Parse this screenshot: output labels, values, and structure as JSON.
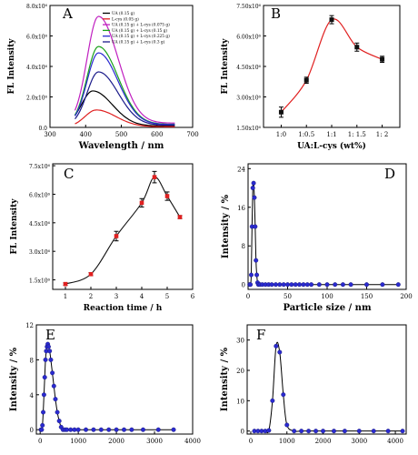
{
  "chart_data": [
    {
      "panel": "A",
      "type": "line",
      "xlabel": "Wavelength / nm",
      "ylabel": "FL Intensity",
      "xlim": [
        300,
        700
      ],
      "ylim": [
        0,
        8000000
      ],
      "xticks": [
        "300",
        "400",
        "500",
        "600",
        "700"
      ],
      "yticks": [
        "0.0",
        "2.0x10⁶",
        "4.0x10⁶",
        "6.0x10⁶",
        "8.0x10⁶"
      ],
      "legend_position": "top-right",
      "series": [
        {
          "name": "UA (0.15 g)",
          "color": "#000000",
          "peak_x": 420,
          "peak": 2300000
        },
        {
          "name": "L-cys (0.05 g)",
          "color": "#e02020",
          "peak_x": 430,
          "peak": 1100000
        },
        {
          "name": "UA (0.15 g) + L-cys (0.075 g)",
          "color": "#c020c0",
          "peak_x": 436,
          "peak": 7000000
        },
        {
          "name": "UA (0.15 g) + L-cys (0.15 g)",
          "color": "#18a018",
          "peak_x": 436,
          "peak": 5100000
        },
        {
          "name": "UA (0.15 g) + L-cys (0.225 g)",
          "color": "#2a2ad0",
          "peak_x": 436,
          "peak": 4700000
        },
        {
          "name": "UA (0.15 g) + L-cys (0.3 g)",
          "color": "#1b1b8a",
          "peak_x": 436,
          "peak": 3500000
        }
      ]
    },
    {
      "panel": "B",
      "type": "line",
      "xlabel": "UA:L-cys (wt%)",
      "ylabel": "FL Intensity",
      "categories": [
        "1:0",
        "1:0.5",
        "1:1",
        "1: 1.5",
        "1: 2"
      ],
      "values": [
        2250000,
        3820000,
        6800000,
        5450000,
        4850000
      ],
      "errors": [
        250000,
        150000,
        200000,
        200000,
        150000
      ],
      "ylim": [
        1500000,
        7500000
      ],
      "yticks": [
        "1.50x10⁶",
        "3.00x10⁶",
        "4.50x10⁶",
        "6.00x10⁶",
        "7.50x10⁶"
      ],
      "line_color": "#e02020",
      "marker_color": "#111111"
    },
    {
      "panel": "C",
      "type": "line",
      "xlabel": "Reaction time / h",
      "ylabel": "FL Intensity",
      "x": [
        1,
        2,
        3,
        4,
        4.5,
        5,
        5.5
      ],
      "values": [
        1280000,
        1800000,
        3800000,
        5550000,
        6900000,
        5900000,
        4800000
      ],
      "errors": [
        60000,
        80000,
        250000,
        220000,
        300000,
        220000,
        80000
      ],
      "xlim": [
        0.5,
        6
      ],
      "ylim": [
        1000000,
        7600000
      ],
      "xticks": [
        "1",
        "2",
        "3",
        "4",
        "5",
        "6"
      ],
      "yticks": [
        "1.5x10⁶",
        "3.0x10⁶",
        "4.5x10⁶",
        "6.0x10⁶",
        "7.5x10⁶"
      ],
      "line_color": "#111111",
      "marker_color": "#e02020"
    },
    {
      "panel": "D",
      "type": "line",
      "xlabel": "Particle size / nm",
      "ylabel": "Intensity / %",
      "x": [
        2,
        3,
        4,
        5,
        6,
        7,
        8,
        9,
        10,
        11,
        12,
        13,
        15,
        18,
        22,
        26,
        30,
        35,
        40,
        45,
        50,
        55,
        60,
        65,
        70,
        75,
        80,
        90,
        100,
        110,
        120,
        130,
        150,
        170,
        190
      ],
      "values": [
        0,
        0,
        2,
        12,
        20,
        21,
        18,
        12,
        5,
        2,
        0.4,
        0,
        0,
        0,
        0,
        0,
        0,
        0,
        0,
        0,
        0,
        0,
        0,
        0,
        0,
        0,
        0,
        0,
        0,
        0,
        0,
        0,
        0,
        0,
        0
      ],
      "xlim": [
        0,
        200
      ],
      "ylim": [
        -1,
        25
      ],
      "xticks": [
        "0",
        "50",
        "100",
        "150",
        "200"
      ],
      "yticks": [
        "0",
        "8",
        "16",
        "24"
      ],
      "color": "#2a2ad0"
    },
    {
      "panel": "E",
      "type": "line",
      "xlabel": "",
      "ylabel": "Intensity / %",
      "x": [
        20,
        40,
        60,
        80,
        100,
        120,
        140,
        160,
        180,
        200,
        220,
        250,
        280,
        320,
        360,
        400,
        450,
        500,
        550,
        600,
        650,
        700,
        800,
        900,
        1000,
        1200,
        1400,
        1600,
        1800,
        2000,
        2200,
        2400,
        2700,
        3100,
        3500
      ],
      "values": [
        0,
        0,
        0.5,
        2,
        4,
        6,
        8,
        9,
        9.5,
        9.8,
        9.5,
        9,
        8,
        6.5,
        5,
        3.5,
        2,
        1,
        0.3,
        0,
        0,
        0,
        0,
        0,
        0,
        0,
        0,
        0,
        0,
        0,
        0,
        0,
        0,
        0,
        0
      ],
      "xlim": [
        -100,
        4000
      ],
      "ylim": [
        -0.5,
        12
      ],
      "xticks": [
        "0",
        "1000",
        "2000",
        "3000",
        "4000"
      ],
      "yticks": [
        "0",
        "4",
        "8",
        "12"
      ],
      "color": "#2a2ad0"
    },
    {
      "panel": "F",
      "type": "line",
      "xlabel": "",
      "ylabel": "Intensity / %",
      "x": [
        100,
        200,
        300,
        400,
        500,
        600,
        700,
        800,
        900,
        1000,
        1200,
        1400,
        1600,
        1800,
        2000,
        2300,
        2600,
        3000,
        3400,
        3800,
        4200
      ],
      "values": [
        0,
        0,
        0,
        0,
        0.2,
        10,
        28,
        26,
        12,
        2,
        0,
        0,
        0,
        0,
        0,
        0,
        0,
        0,
        0,
        0,
        0
      ],
      "xlim": [
        -100,
        4300
      ],
      "ylim": [
        -1,
        35
      ],
      "xticks": [
        "0",
        "1000",
        "2000",
        "3000",
        "4000"
      ],
      "yticks": [
        "0",
        "10",
        "20",
        "30"
      ],
      "color": "#2a2ad0"
    }
  ]
}
